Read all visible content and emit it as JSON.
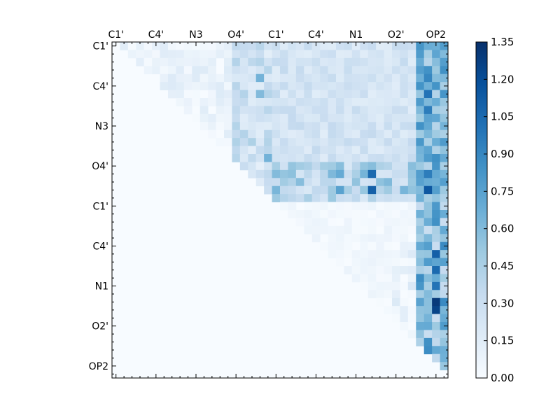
{
  "chart_data": {
    "type": "heatmap",
    "title": "",
    "xlabel": "",
    "ylabel": "",
    "n": 42,
    "tick_labels": [
      "C1'",
      "C4'",
      "N3",
      "O4'",
      "C1'",
      "C4'",
      "N1",
      "O2'",
      "OP2"
    ],
    "tick_positions": [
      0,
      5,
      10,
      15,
      20,
      25,
      30,
      35,
      40
    ],
    "colorbar": {
      "min": 0.0,
      "max": 1.35,
      "ticks": [
        "0.00",
        "0.15",
        "0.30",
        "0.45",
        "0.60",
        "0.75",
        "0.90",
        "1.05",
        "1.20",
        "1.35"
      ],
      "colormap": "Blues"
    },
    "grid": false,
    "upper_triangle_only": true,
    "hot_cells": [
      {
        "row": 4,
        "col": 39,
        "value": 0.9
      },
      {
        "row": 6,
        "col": 39,
        "value": 1.0
      },
      {
        "row": 8,
        "col": 39,
        "value": 0.95
      },
      {
        "row": 4,
        "col": 18,
        "value": 0.65
      },
      {
        "row": 6,
        "col": 18,
        "value": 0.6
      },
      {
        "row": 14,
        "col": 19,
        "value": 0.65
      },
      {
        "row": 16,
        "col": 32,
        "value": 1.05
      },
      {
        "row": 18,
        "col": 32,
        "value": 1.1
      },
      {
        "row": 16,
        "col": 28,
        "value": 0.7
      },
      {
        "row": 18,
        "col": 28,
        "value": 0.75
      },
      {
        "row": 16,
        "col": 39,
        "value": 0.95
      },
      {
        "row": 18,
        "col": 39,
        "value": 1.15
      },
      {
        "row": 26,
        "col": 40,
        "value": 1.1
      },
      {
        "row": 28,
        "col": 40,
        "value": 1.05
      },
      {
        "row": 30,
        "col": 40,
        "value": 1.0
      },
      {
        "row": 32,
        "col": 40,
        "value": 1.3
      },
      {
        "row": 33,
        "col": 40,
        "value": 1.25
      },
      {
        "row": 20,
        "col": 40,
        "value": 0.8
      }
    ]
  }
}
